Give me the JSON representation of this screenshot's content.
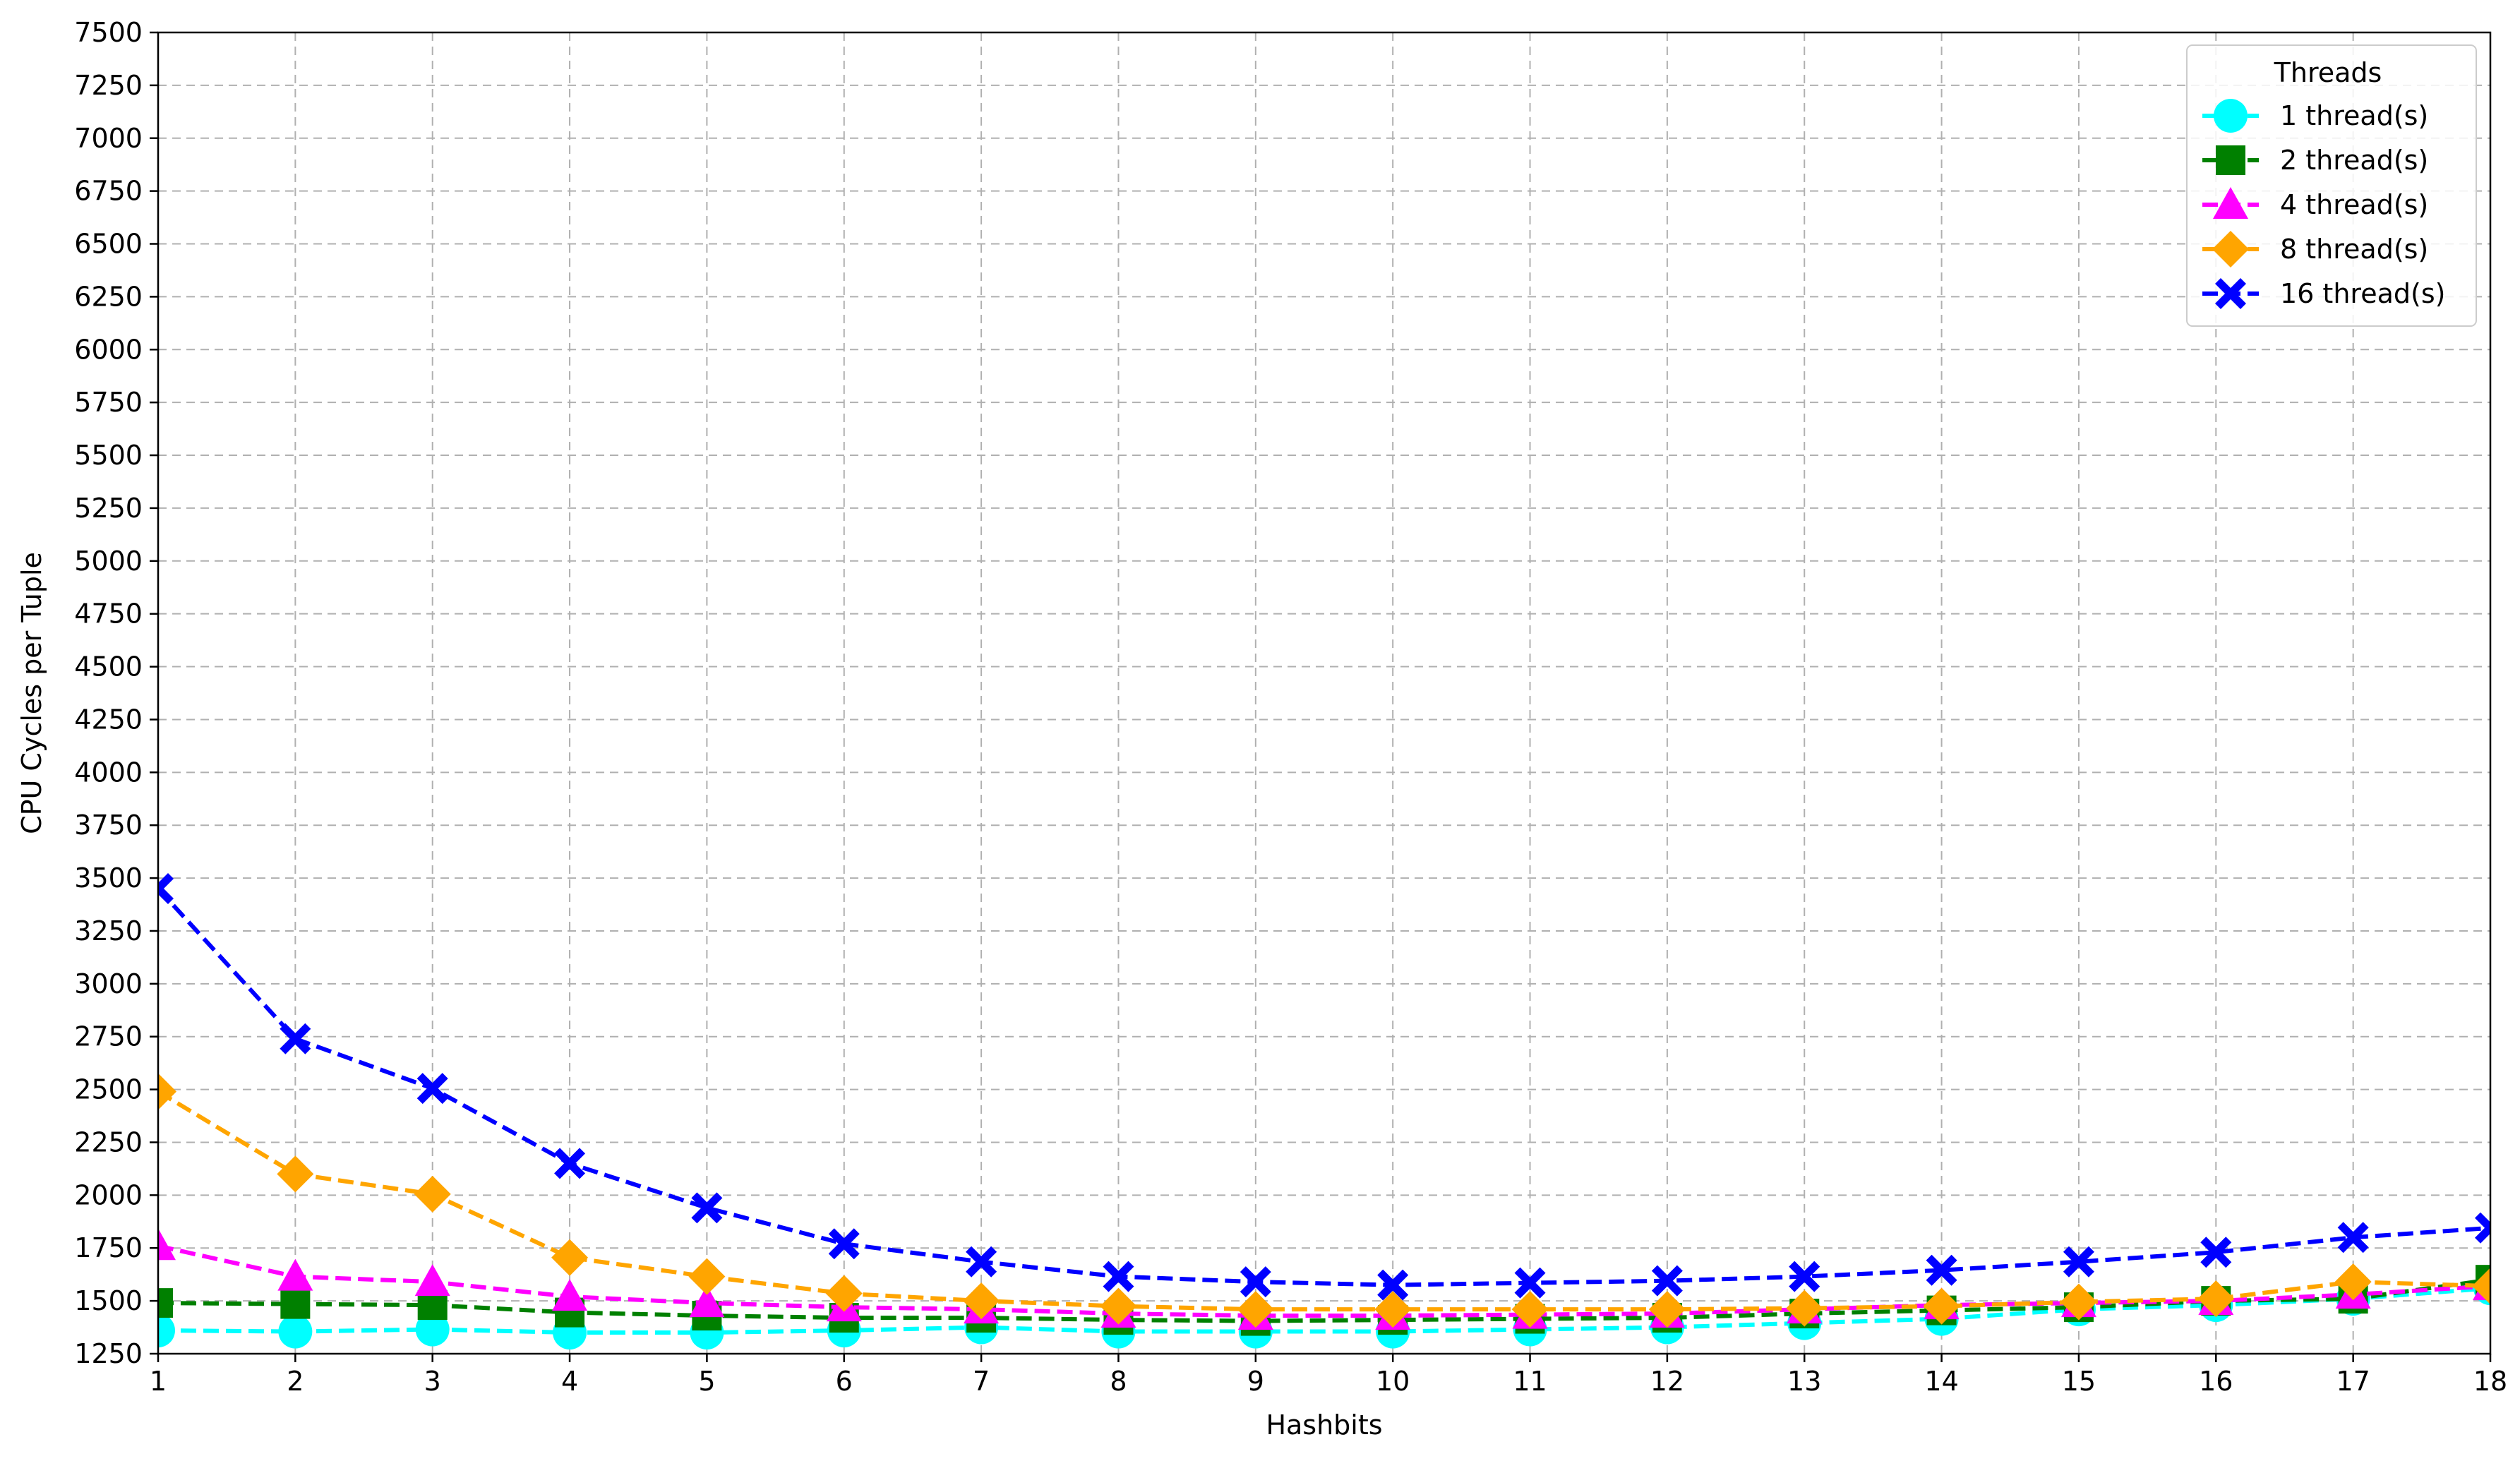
{
  "chart_data": {
    "type": "line",
    "xlabel": "Hashbits",
    "ylabel": "CPU Cycles per Tuple",
    "xlim": [
      1,
      18
    ],
    "ylim": [
      1250,
      7500
    ],
    "xticks": [
      "1",
      "2",
      "3",
      "4",
      "5",
      "6",
      "7",
      "8",
      "9",
      "10",
      "11",
      "12",
      "13",
      "14",
      "15",
      "16",
      "17",
      "18"
    ],
    "yticks": [
      "1250",
      "1500",
      "1750",
      "2000",
      "2250",
      "2500",
      "2750",
      "3000",
      "3250",
      "3500",
      "3750",
      "4000",
      "4250",
      "4500",
      "4750",
      "5000",
      "5250",
      "5500",
      "5750",
      "6000",
      "6250",
      "6500",
      "6750",
      "7000",
      "7250",
      "7500"
    ],
    "grid": true,
    "legend": {
      "title": "Threads",
      "position": "top-right"
    },
    "x": [
      1,
      2,
      3,
      4,
      5,
      6,
      7,
      8,
      9,
      10,
      11,
      12,
      13,
      14,
      15,
      16,
      17,
      18
    ],
    "series": [
      {
        "name": "1 thread(s)",
        "color": "#00ffff",
        "marker": "circle",
        "values": [
          1360,
          1355,
          1365,
          1350,
          1350,
          1360,
          1375,
          1355,
          1355,
          1355,
          1365,
          1375,
          1395,
          1415,
          1460,
          1480,
          1510,
          1560
        ]
      },
      {
        "name": "2 thread(s)",
        "color": "#008000",
        "marker": "square",
        "values": [
          1490,
          1485,
          1480,
          1445,
          1430,
          1420,
          1420,
          1410,
          1405,
          1410,
          1415,
          1420,
          1440,
          1455,
          1470,
          1500,
          1510,
          1600
        ]
      },
      {
        "name": "4 thread(s)",
        "color": "#ff00ff",
        "marker": "triangle",
        "values": [
          1760,
          1615,
          1590,
          1520,
          1490,
          1470,
          1460,
          1440,
          1430,
          1430,
          1435,
          1440,
          1460,
          1480,
          1490,
          1500,
          1530,
          1570
        ]
      },
      {
        "name": "8 thread(s)",
        "color": "#ffa500",
        "marker": "diamond",
        "values": [
          2490,
          2100,
          2005,
          1705,
          1615,
          1535,
          1500,
          1475,
          1460,
          1460,
          1460,
          1460,
          1465,
          1475,
          1495,
          1510,
          1590,
          1570
        ]
      },
      {
        "name": "16 thread(s)",
        "color": "#0000ff",
        "marker": "x",
        "values": [
          3450,
          2740,
          2505,
          2150,
          1940,
          1770,
          1685,
          1615,
          1590,
          1575,
          1585,
          1595,
          1615,
          1645,
          1685,
          1730,
          1800,
          1845
        ]
      }
    ]
  }
}
